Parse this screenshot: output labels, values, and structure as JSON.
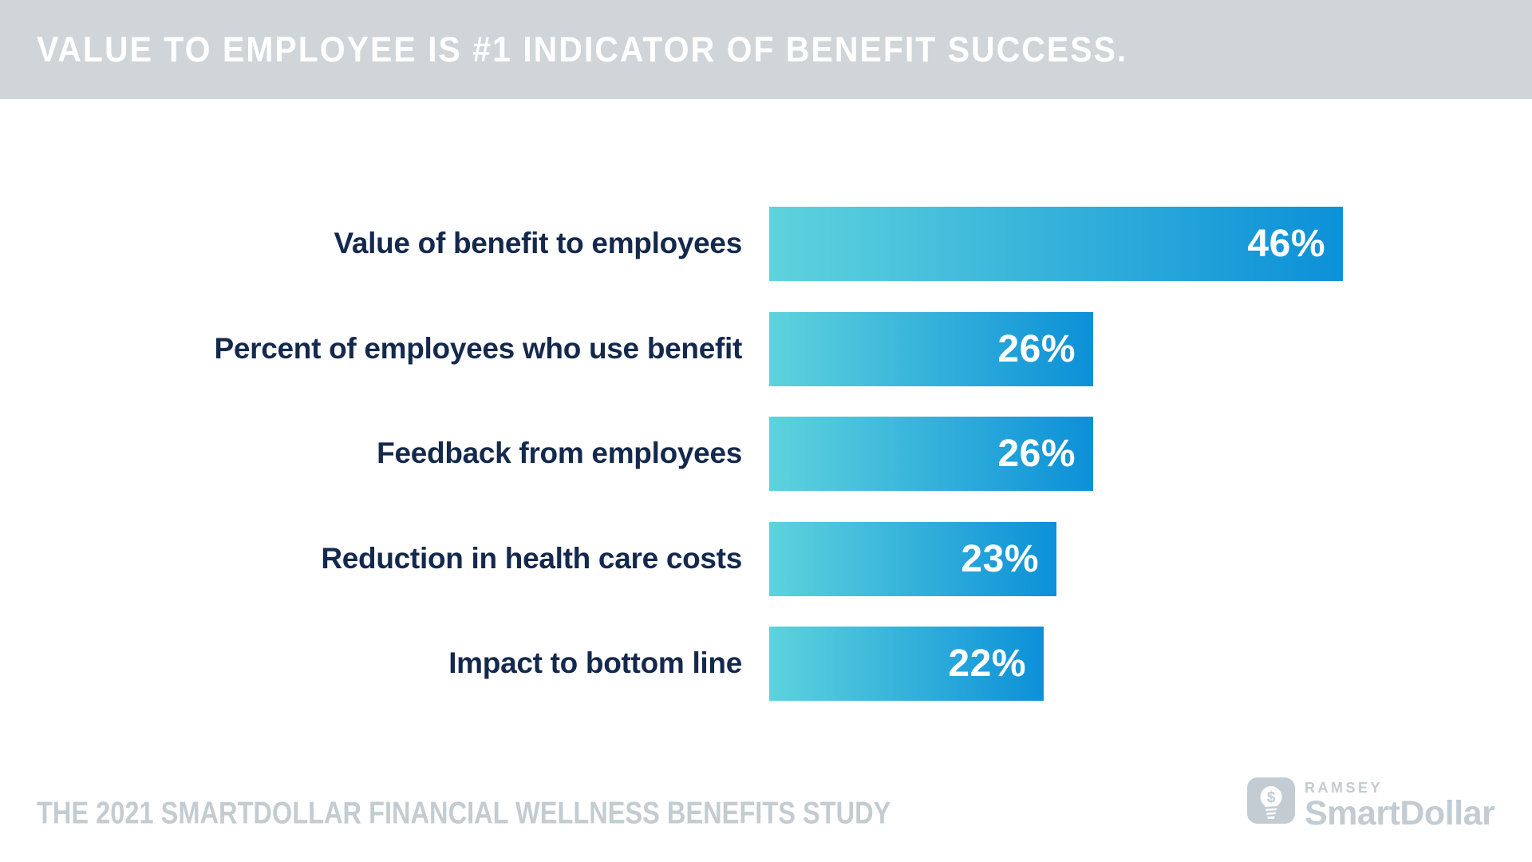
{
  "header": {
    "title": "VALUE TO EMPLOYEE IS #1 INDICATOR OF BENEFIT SUCCESS."
  },
  "chart_data": {
    "type": "bar",
    "orientation": "horizontal",
    "title": "VALUE TO EMPLOYEE IS #1 INDICATOR OF BENEFIT SUCCESS.",
    "categories": [
      "Value of benefit to employees",
      "Percent of employees who use benefit",
      "Feedback from employees",
      "Reduction in health care costs",
      "Impact to bottom line"
    ],
    "values": [
      46,
      26,
      26,
      23,
      22
    ],
    "value_labels": [
      "46%",
      "26%",
      "26%",
      "23%",
      "22%"
    ],
    "xlim": [
      0,
      46
    ],
    "grid": false,
    "legend": false,
    "bar_gradient_start": "#5ed3dd",
    "bar_gradient_end": "#0c90d8",
    "label_color": "#14294d",
    "value_text_color": "#ffffff"
  },
  "footer": {
    "source": "THE 2021 SMARTDOLLAR FINANCIAL WELLNESS BENEFITS STUDY"
  },
  "logo": {
    "icon": "lightbulb-dollar-icon",
    "brand_top": "RAMSEY",
    "brand_name": "SmartDollar",
    "color": "#c2ccd2"
  },
  "colors": {
    "banner_background": "#cfd5d8",
    "page_background": "#ffffff",
    "footer_text": "#c3ccd1"
  }
}
